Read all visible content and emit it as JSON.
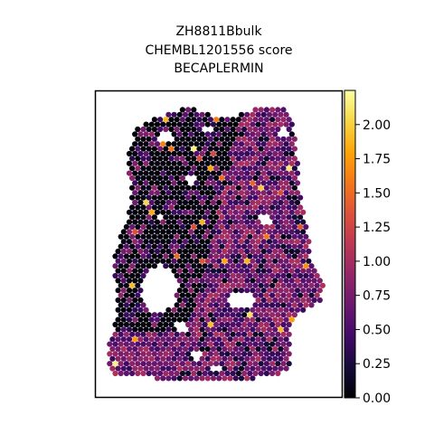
{
  "title_lines": [
    "ZH8811Bbulk",
    "CHEMBL1201556 score",
    "BECAPLERMIN"
  ],
  "colormap": "inferno",
  "chart_data": {
    "type": "scatter",
    "subtype": "spatial-hexbin",
    "title": "ZH8811Bbulk\nCHEMBL1201556 score\nBECAPLERMIN",
    "xlabel": "",
    "ylabel": "",
    "axes_ticks": false,
    "colorbar": {
      "range": [
        0.0,
        2.25
      ],
      "ticks": [
        0.0,
        0.25,
        0.5,
        0.75,
        1.0,
        1.25,
        1.5,
        1.75,
        2.0
      ],
      "tick_labels": [
        "0.00",
        "0.25",
        "0.50",
        "0.75",
        "1.00",
        "1.25",
        "1.50",
        "1.75",
        "2.00"
      ],
      "placement": "right"
    },
    "value_distribution": {
      "left_region_typical": 0.1,
      "right_region_typical": 0.65,
      "max_observed": 2.2
    }
  }
}
